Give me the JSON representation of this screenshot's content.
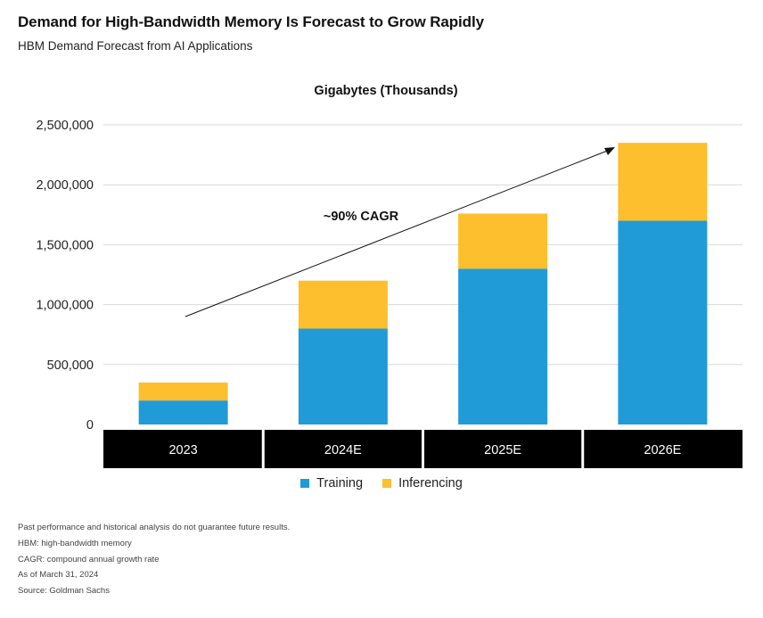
{
  "title": "Demand for High-Bandwidth Memory Is Forecast to Grow Rapidly",
  "subtitle": "HBM Demand Forecast from AI Applications",
  "colors": {
    "training": "#219BD8",
    "inferencing": "#FDBF2D",
    "category_bar": "#000000",
    "grid": "#d9d9d9"
  },
  "chart_data": {
    "type": "bar",
    "stacked": true,
    "units_label": "Gigabytes (Thousands)",
    "categories": [
      "2023",
      "2024E",
      "2025E",
      "2026E"
    ],
    "series": [
      {
        "name": "Training",
        "values": [
          200000,
          800000,
          1300000,
          1700000
        ]
      },
      {
        "name": "Inferencing",
        "values": [
          150000,
          400000,
          460000,
          650000
        ]
      }
    ],
    "ylim": [
      0,
      2500000
    ],
    "yticks": [
      0,
      500000,
      1000000,
      1500000,
      2000000,
      2500000
    ],
    "ytick_labels": [
      "0",
      "500,000",
      "1,000,000",
      "1,500,000",
      "2,000,000",
      "2,500,000"
    ],
    "grid": true,
    "legend_position": "bottom-center",
    "annotation": {
      "text": "~90% CAGR"
    }
  },
  "legend": {
    "training": "Training",
    "inferencing": "Inferencing"
  },
  "notes": [
    "Past performance and historical analysis do not guarantee future results.",
    "HBM: high-bandwidth memory",
    "CAGR: compound annual growth rate",
    "As of March 31, 2024",
    "Source: Goldman Sachs"
  ]
}
